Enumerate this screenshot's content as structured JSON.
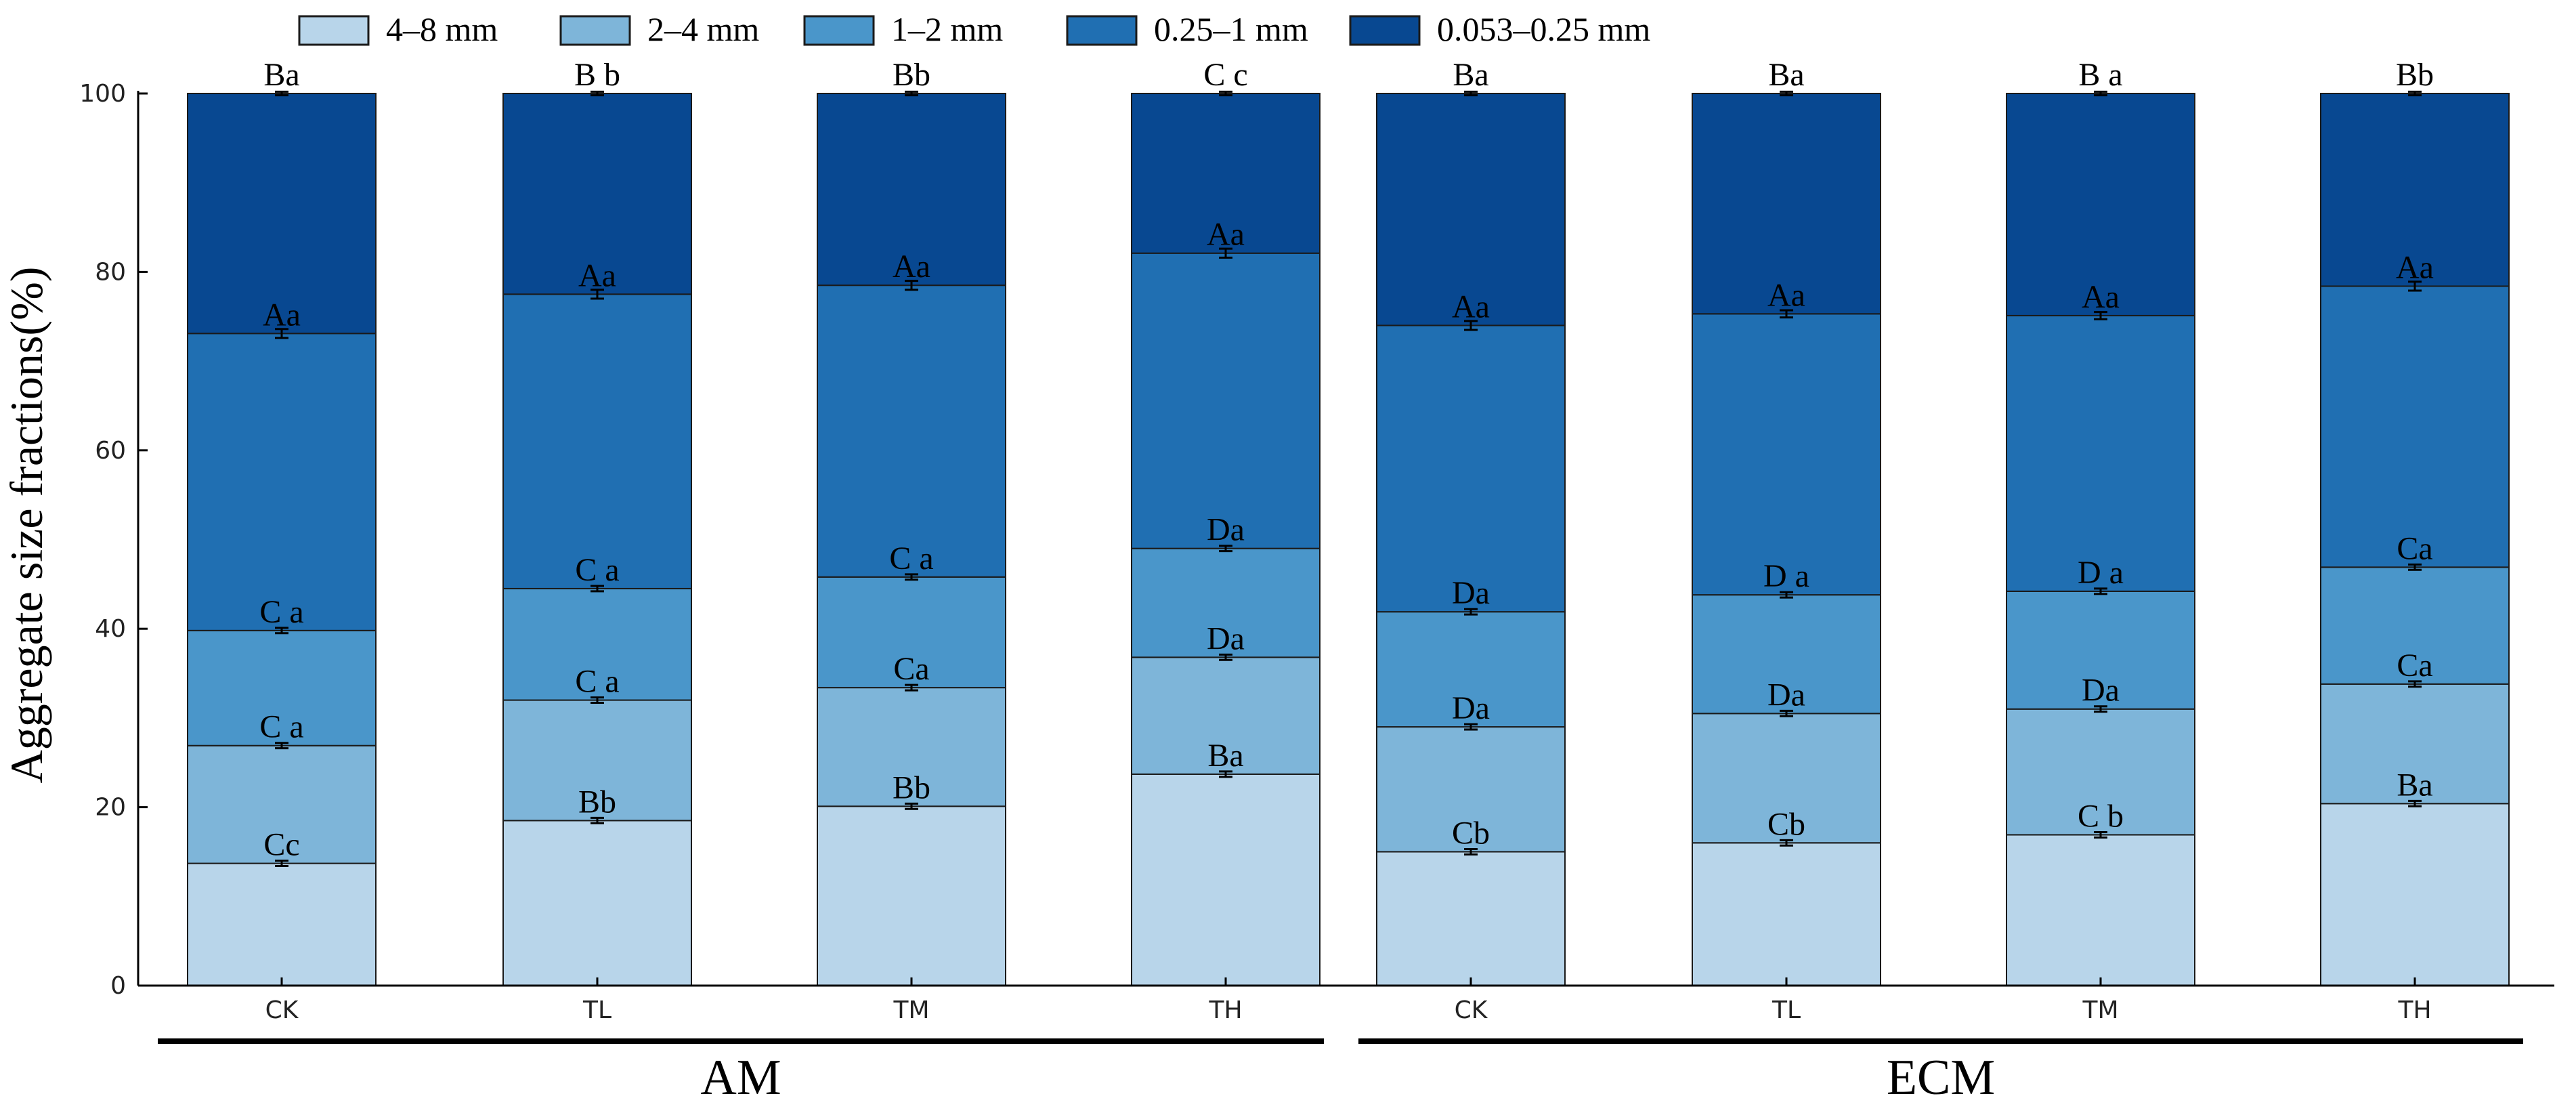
{
  "chart_data": {
    "type": "bar",
    "stacked": true,
    "ylabel": "Aggregate size fractions(%)",
    "xlabel": "",
    "ylim": [
      0,
      100
    ],
    "yticks": [
      0,
      20,
      40,
      60,
      80,
      100
    ],
    "legend_position": "top",
    "categories": [
      "CK",
      "TL",
      "TM",
      "TH",
      "CK",
      "TL",
      "TM",
      "TH"
    ],
    "groups": [
      {
        "name": "AM",
        "indices": [
          0,
          1,
          2,
          3
        ]
      },
      {
        "name": "ECM",
        "indices": [
          4,
          5,
          6,
          7
        ]
      }
    ],
    "series": [
      {
        "name": "4–8  mm",
        "color": "#b8d5ea",
        "values": [
          13.7,
          18.5,
          20.1,
          23.7,
          15.0,
          16.0,
          16.9,
          20.4
        ],
        "errors": [
          0.3,
          0.3,
          0.3,
          0.3,
          0.3,
          0.3,
          0.3,
          0.3
        ],
        "labels": [
          "Cc",
          "Bb",
          "Bb",
          "Ba",
          "Cb",
          "Cb",
          "C b",
          "Ba"
        ]
      },
      {
        "name": "2–4 mm",
        "color": "#7eb5d9",
        "values": [
          13.2,
          13.5,
          13.3,
          13.1,
          14.0,
          14.5,
          14.1,
          13.4
        ],
        "errors": [
          0.3,
          0.3,
          0.3,
          0.3,
          0.3,
          0.3,
          0.3,
          0.3
        ],
        "labels": [
          "C a",
          "C a",
          "Ca",
          "Da",
          "Da",
          "Da",
          "Da",
          "Ca"
        ]
      },
      {
        "name": "1–2 mm",
        "color": "#4a96ca",
        "values": [
          12.9,
          12.5,
          12.4,
          12.2,
          12.9,
          13.3,
          13.2,
          13.1
        ],
        "errors": [
          0.3,
          0.3,
          0.3,
          0.3,
          0.3,
          0.3,
          0.3,
          0.3
        ],
        "labels": [
          "C a",
          "C a",
          "C a",
          "Da",
          "Da",
          "D a",
          "D a",
          "Ca"
        ]
      },
      {
        "name": "0.25–1 mm",
        "color": "#206fb2",
        "values": [
          33.3,
          33.0,
          32.7,
          33.1,
          32.1,
          31.5,
          30.9,
          31.5
        ],
        "errors": [
          0.5,
          0.5,
          0.5,
          0.5,
          0.5,
          0.4,
          0.4,
          0.5
        ],
        "labels": [
          "Aa",
          "Aa",
          "Aa",
          "Aa",
          "Aa",
          "Aa",
          "Aa",
          "Aa"
        ]
      },
      {
        "name": "0.053–0.25 mm",
        "color": "#084891",
        "values": [
          26.9,
          22.5,
          21.5,
          17.9,
          26.0,
          24.7,
          24.9,
          21.6
        ],
        "errors": [
          0.2,
          0.2,
          0.2,
          0.2,
          0.2,
          0.2,
          0.2,
          0.2
        ],
        "labels": [
          "Ba",
          "B b",
          "Bb",
          "C c",
          "Ba",
          "Ba",
          "B a",
          "Bb"
        ]
      }
    ]
  }
}
